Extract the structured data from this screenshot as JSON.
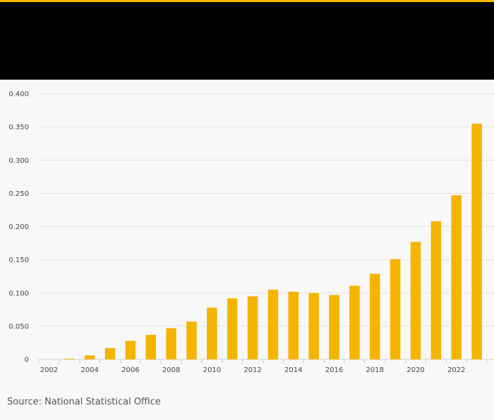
{
  "colors": {
    "accent": "#f5b400",
    "header_background": "#000000",
    "bar": "#f5b400",
    "grid": "#e2e2e2",
    "text": "#444444"
  },
  "chart_data": {
    "type": "bar",
    "title": "",
    "xlabel": "",
    "ylabel": "",
    "ylim": [
      0,
      0.4
    ],
    "yticks": [
      0,
      0.05,
      0.1,
      0.15,
      0.2,
      0.25,
      0.3,
      0.35,
      0.4
    ],
    "ytick_labels": [
      "0",
      "0.050",
      "0.100",
      "0.150",
      "0.200",
      "0.250",
      "0.300",
      "0.350",
      "0.400"
    ],
    "categories": [
      "2002",
      "2003",
      "2004",
      "2005",
      "2006",
      "2007",
      "2008",
      "2009",
      "2010",
      "2011",
      "2012",
      "2013",
      "2014",
      "2015",
      "2016",
      "2017",
      "2018",
      "2019",
      "2020",
      "2021",
      "2022",
      "2023"
    ],
    "xtick_labels": [
      "2002",
      "",
      "2004",
      "",
      "2006",
      "",
      "2008",
      "",
      "2010",
      "",
      "2012",
      "",
      "2014",
      "",
      "2016",
      "",
      "2018",
      "",
      "2020",
      "",
      "2022",
      ""
    ],
    "values": [
      0,
      0.001,
      0.006,
      0.017,
      0.028,
      0.037,
      0.047,
      0.057,
      0.078,
      0.092,
      0.095,
      0.105,
      0.102,
      0.1,
      0.097,
      0.111,
      0.129,
      0.151,
      0.177,
      0.208,
      0.247,
      0.355
    ],
    "grid": true,
    "legend": "none"
  },
  "source": "Source: National Statistical Office"
}
